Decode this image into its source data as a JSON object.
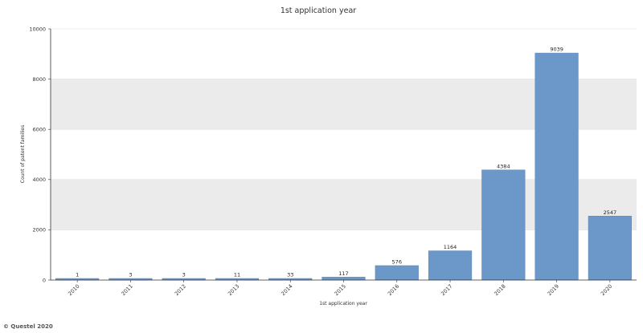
{
  "chart_data": {
    "type": "bar",
    "title": "1st application year",
    "xlabel": "1st application year",
    "ylabel": "Count of patent families",
    "categories": [
      "2010",
      "2011",
      "2012",
      "2013",
      "2014",
      "2015",
      "2016",
      "2017",
      "2018",
      "2019",
      "2020"
    ],
    "values": [
      1,
      3,
      3,
      11,
      33,
      117,
      576,
      1164,
      4384,
      9039,
      2547
    ],
    "ylim": [
      0,
      10000
    ],
    "yticks": [
      0,
      2000,
      4000,
      6000,
      8000,
      10000
    ],
    "grid": "alternating horizontal bands",
    "bar_color": "#6b98c8",
    "band_color": "#ebebeb",
    "legend": "none"
  },
  "footer": {
    "copyright": "© Questel 2020"
  }
}
